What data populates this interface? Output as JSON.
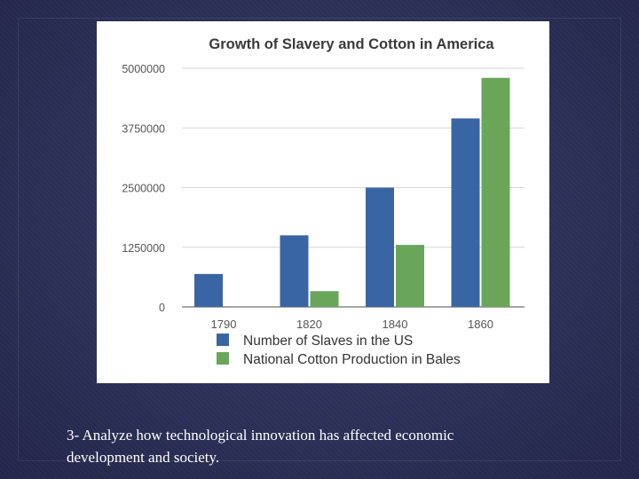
{
  "caption": {
    "line1": "3- Analyze how technological innovation has affected economic",
    "line2": "development and society."
  },
  "chart_data": {
    "type": "bar",
    "title": "Growth of Slavery and Cotton in America",
    "categories": [
      "1790",
      "1820",
      "1840",
      "1860"
    ],
    "series": [
      {
        "name": "Number of Slaves in the US",
        "values": [
          690000,
          1500000,
          2500000,
          3950000
        ],
        "color": "#3a65a4"
      },
      {
        "name": "National Cotton Production in Bales",
        "values": [
          0,
          330000,
          1300000,
          4800000
        ],
        "color": "#6aa65a"
      }
    ],
    "y_ticks": [
      0,
      1250000,
      2500000,
      3750000,
      5000000
    ],
    "ylim": [
      0,
      5000000
    ],
    "grid": true,
    "legend_position": "bottom"
  }
}
